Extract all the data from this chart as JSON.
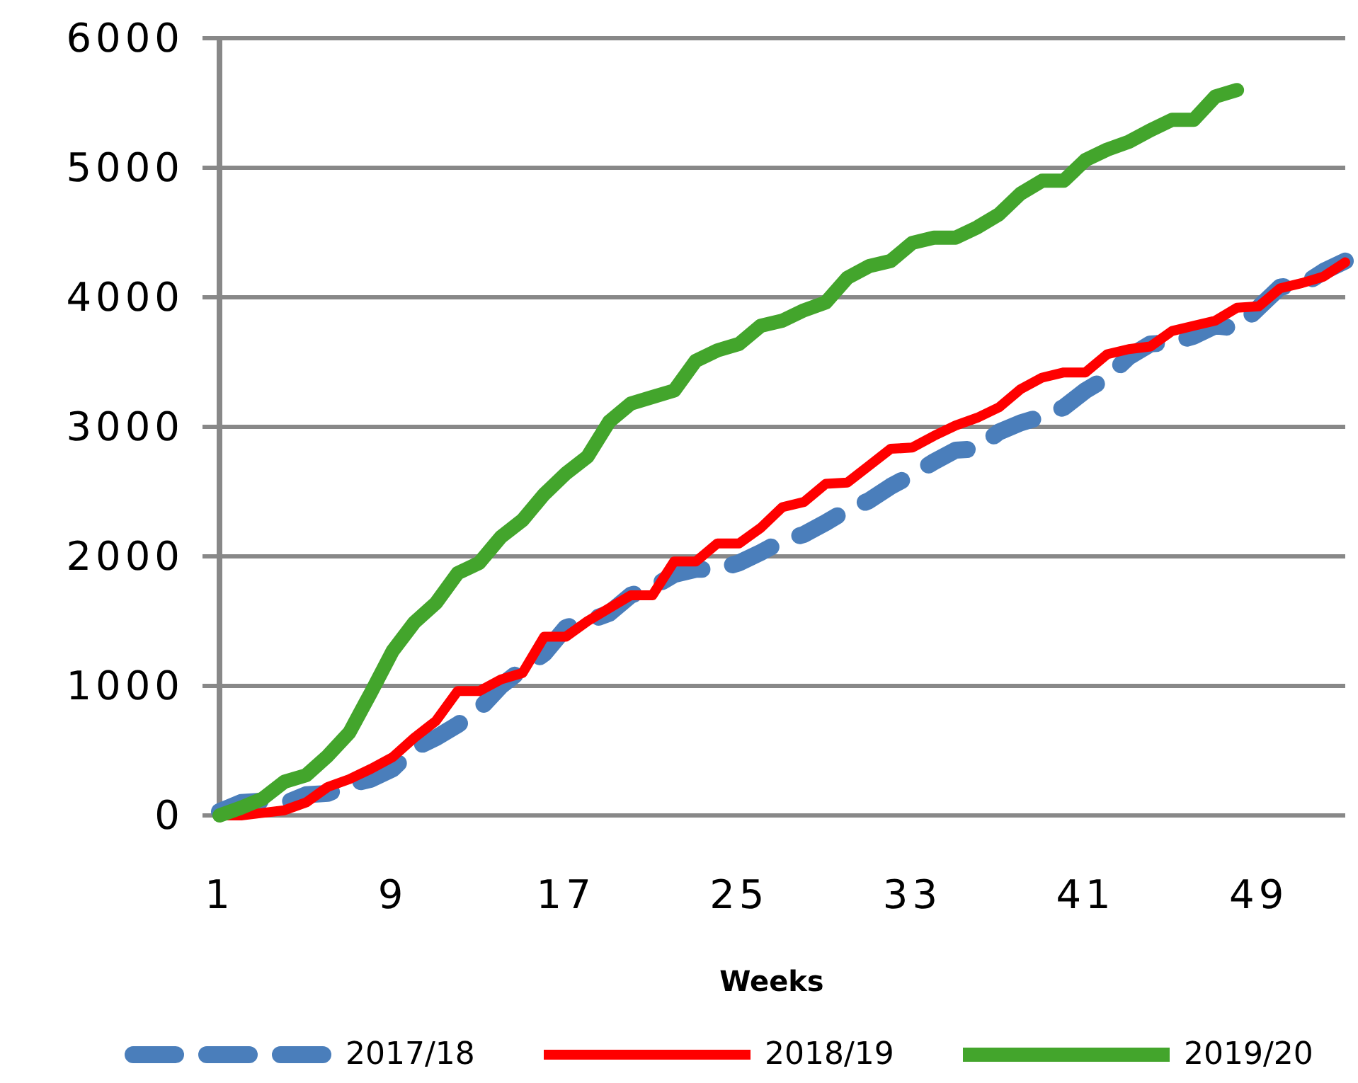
{
  "chart_data": {
    "type": "line",
    "xlabel": "Weeks",
    "xlim": [
      1,
      53
    ],
    "xticks": [
      1,
      9,
      17,
      25,
      33,
      41,
      49
    ],
    "ylim": [
      0,
      6000
    ],
    "yticks": [
      0,
      1000,
      2000,
      3000,
      4000,
      5000,
      6000
    ],
    "grid": "y",
    "legend": "bottom",
    "marker": "none",
    "series": [
      {
        "name": "2017/18",
        "color": "#4a7ebb",
        "line_style": "dashed",
        "x": [
          1,
          2,
          3,
          4,
          5,
          6,
          7,
          8,
          9,
          10,
          11,
          12,
          13,
          14,
          15,
          16,
          17,
          18,
          19,
          20,
          21,
          22,
          23,
          24,
          25,
          26,
          27,
          28,
          29,
          30,
          31,
          32,
          33,
          34,
          35,
          36,
          37,
          38,
          39,
          40,
          41,
          42,
          43,
          44,
          45,
          46,
          47,
          48,
          49,
          50,
          51,
          52,
          53
        ],
        "values": [
          30,
          100,
          110,
          90,
          160,
          170,
          240,
          280,
          360,
          520,
          600,
          700,
          820,
          1000,
          1130,
          1250,
          1450,
          1500,
          1560,
          1700,
          1760,
          1860,
          1900,
          1900,
          1950,
          2030,
          2120,
          2170,
          2260,
          2360,
          2430,
          2540,
          2630,
          2730,
          2820,
          2830,
          2960,
          3030,
          3080,
          3150,
          3280,
          3380,
          3540,
          3640,
          3650,
          3700,
          3780,
          3760,
          3920,
          4080,
          4090,
          4200,
          4280
        ]
      },
      {
        "name": "2018/19",
        "color": "#ff0000",
        "line_style": "solid",
        "x": [
          1,
          2,
          3,
          4,
          5,
          6,
          7,
          8,
          9,
          10,
          11,
          12,
          13,
          14,
          15,
          16,
          17,
          18,
          19,
          20,
          21,
          22,
          23,
          24,
          25,
          26,
          27,
          28,
          29,
          30,
          31,
          32,
          33,
          34,
          35,
          36,
          37,
          38,
          39,
          40,
          41,
          42,
          43,
          44,
          45,
          46,
          47,
          48,
          49,
          50,
          51,
          52,
          53
        ],
        "values": [
          0,
          0,
          20,
          40,
          100,
          220,
          280,
          360,
          450,
          600,
          730,
          960,
          960,
          1050,
          1100,
          1380,
          1380,
          1500,
          1600,
          1700,
          1700,
          1960,
          1960,
          2100,
          2100,
          2220,
          2380,
          2420,
          2560,
          2570,
          2700,
          2830,
          2840,
          2930,
          3010,
          3070,
          3150,
          3290,
          3380,
          3420,
          3420,
          3560,
          3600,
          3620,
          3740,
          3780,
          3820,
          3920,
          3930,
          4070,
          4110,
          4160,
          4270
        ]
      },
      {
        "name": "2019/20",
        "color": "#43a52c",
        "line_style": "solid",
        "x": [
          1,
          2,
          3,
          4,
          5,
          6,
          7,
          8,
          9,
          10,
          11,
          12,
          13,
          14,
          15,
          16,
          17,
          18,
          19,
          20,
          21,
          22,
          23,
          24,
          25,
          26,
          27,
          28,
          29,
          30,
          31,
          32,
          33,
          34,
          35,
          36,
          37,
          38,
          39,
          40,
          41,
          42,
          43,
          44,
          45,
          46,
          47,
          48
        ],
        "values": [
          0,
          60,
          130,
          260,
          310,
          460,
          640,
          950,
          1270,
          1490,
          1640,
          1870,
          1950,
          2150,
          2280,
          2480,
          2640,
          2770,
          3040,
          3180,
          3230,
          3280,
          3510,
          3590,
          3640,
          3780,
          3820,
          3900,
          3960,
          4150,
          4240,
          4280,
          4420,
          4460,
          4460,
          4540,
          4640,
          4800,
          4900,
          4900,
          5060,
          5140,
          5200,
          5290,
          5370,
          5370,
          5550,
          5600
        ]
      }
    ]
  }
}
